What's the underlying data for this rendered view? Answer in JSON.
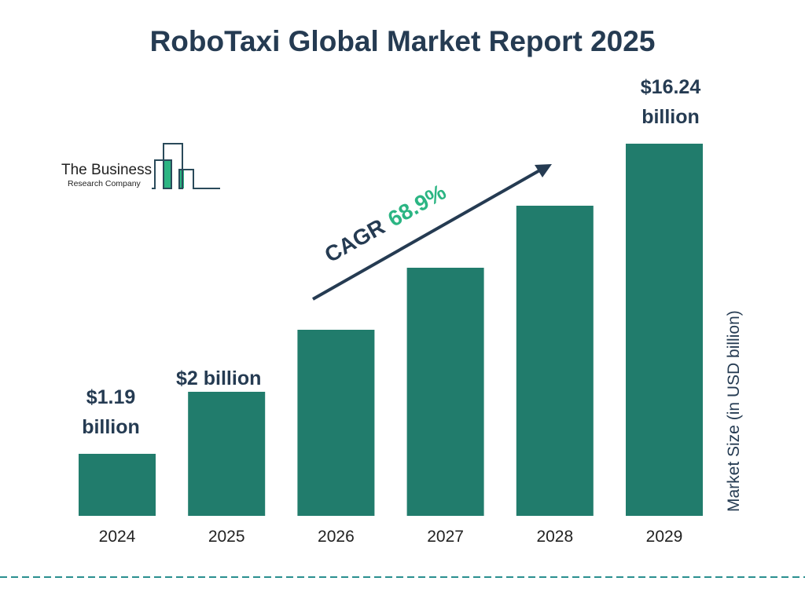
{
  "chart_data": {
    "type": "bar",
    "title": "RoboTaxi Global Market Report 2025",
    "categories": [
      "2024",
      "2025",
      "2026",
      "2027",
      "2028",
      "2029"
    ],
    "values": [
      1.19,
      2,
      null,
      null,
      null,
      16.24
    ],
    "data_labels": [
      [
        "$1.19",
        "billion"
      ],
      [
        "$2 billion"
      ],
      [],
      [],
      [],
      [
        "$16.24",
        "billion"
      ]
    ],
    "ylabel": "Market Size (in USD billion)",
    "xlabel": "",
    "grid": false,
    "bar_color": "#217c6c",
    "annotation": {
      "prefix": "CAGR",
      "value": "68.9%",
      "value_color": "#2bb583",
      "arrow": "up-right"
    }
  },
  "logo": {
    "line1": "The Business",
    "line2": "Research Company"
  },
  "colors": {
    "title": "#253b52",
    "divider": "#2a8f8f"
  }
}
